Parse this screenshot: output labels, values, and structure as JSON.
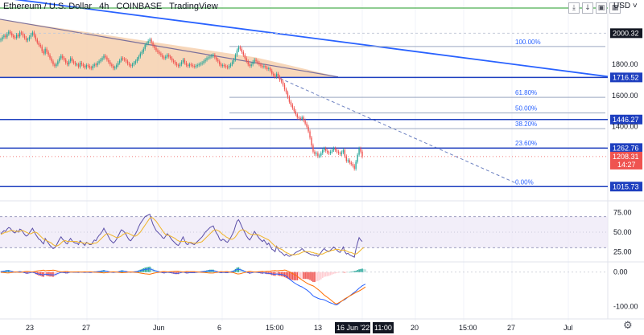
{
  "header": {
    "symbol": "Ethereum / U.S. Dollar",
    "interval": "4h",
    "exchange": "COINBASE",
    "source": "TradingView"
  },
  "toolbar": {
    "currency": "USD",
    "buttons": [
      "download-icon",
      "arrow-down-icon",
      "lock-icon",
      "settings-icon"
    ]
  },
  "colors": {
    "up": "#26a69a",
    "down": "#ef5350",
    "horizontal_line": "#1e3fbf",
    "trend_line": "#2962ff",
    "wedge_fill": "#f6d0ae",
    "fib_line": "#9aa7c0",
    "rsi_line": "#5b4fa8",
    "rsi_ma": "#f0b429",
    "macd_line": "#2962ff",
    "signal_line": "#ff6d00"
  },
  "chart_data": [
    {
      "type": "line",
      "title": "Ethereum / U.S. Dollar 4h COINBASE",
      "ylim": [
        950,
        2100
      ],
      "price_levels": [
        1015.73,
        1262.76,
        1446.27,
        1716.52,
        2000.32
      ],
      "current_price": "1208.31",
      "countdown": "14:27",
      "y_ticks": [
        "2000.32",
        "1800.00",
        "1716.52",
        "1600.00",
        "1446.27",
        "1400.00",
        "1262.76",
        "1208.31",
        "1015.73"
      ],
      "fibonacci": [
        {
          "label": "100.00%",
          "value": 1915
        },
        {
          "label": "61.80%",
          "value": 1589
        },
        {
          "label": "50.00%",
          "value": 1488
        },
        {
          "label": "38.20%",
          "value": 1388
        },
        {
          "label": "23.60%",
          "value": 1264
        },
        {
          "label": "0.00%",
          "value": 1015.73
        }
      ],
      "x_ticks": [
        "23",
        "27",
        "Jun",
        "6",
        "15:00",
        "13",
        "16 Jun '22",
        "11:00",
        "20",
        "15:00",
        "27",
        "Jul"
      ],
      "close_series": [
        1960,
        1975,
        1985,
        1975,
        1995,
        2010,
        2000,
        1985,
        1975,
        1970,
        1990,
        1980,
        2005,
        2000,
        1985,
        1970,
        1955,
        1960,
        1975,
        1990,
        2005,
        1985,
        1960,
        1940,
        1925,
        1915,
        1885,
        1870,
        1900,
        1880,
        1860,
        1840,
        1820,
        1800,
        1790,
        1800,
        1820,
        1840,
        1855,
        1840,
        1830,
        1810,
        1800,
        1820,
        1840,
        1820,
        1810,
        1800,
        1800,
        1785,
        1810,
        1800,
        1790,
        1780,
        1795,
        1790,
        1780,
        1775,
        1790,
        1800,
        1795,
        1810,
        1820,
        1830,
        1840,
        1855,
        1845,
        1830,
        1815,
        1800,
        1790,
        1775,
        1780,
        1795,
        1810,
        1825,
        1840,
        1835,
        1830,
        1820,
        1805,
        1795,
        1790,
        1800,
        1810,
        1820,
        1835,
        1850,
        1870,
        1880,
        1900,
        1925,
        1935,
        1950,
        1960,
        1940,
        1920,
        1905,
        1890,
        1880,
        1870,
        1860,
        1845,
        1840,
        1850,
        1860,
        1850,
        1840,
        1825,
        1815,
        1805,
        1795,
        1790,
        1800,
        1815,
        1830,
        1810,
        1795,
        1790,
        1800,
        1795,
        1790,
        1785,
        1790,
        1795,
        1800,
        1805,
        1810,
        1820,
        1830,
        1840,
        1845,
        1850,
        1855,
        1860,
        1845,
        1830,
        1820,
        1800,
        1790,
        1795,
        1790,
        1785,
        1780,
        1790,
        1800,
        1815,
        1830,
        1860,
        1890,
        1910,
        1900,
        1880,
        1860,
        1840,
        1820,
        1800,
        1790,
        1800,
        1815,
        1830,
        1820,
        1810,
        1800,
        1790,
        1785,
        1790,
        1780,
        1770,
        1775,
        1760,
        1740,
        1730,
        1720,
        1740,
        1720,
        1700,
        1690,
        1670,
        1640,
        1620,
        1590,
        1560,
        1540,
        1520,
        1500,
        1480,
        1460,
        1455,
        1450,
        1460,
        1440,
        1420,
        1400,
        1370,
        1330,
        1280,
        1240,
        1225,
        1230,
        1210,
        1215,
        1230,
        1250,
        1260,
        1245,
        1235,
        1230,
        1240,
        1250,
        1260,
        1250,
        1240,
        1230,
        1225,
        1235,
        1250,
        1210,
        1180,
        1185,
        1170,
        1160,
        1150,
        1130,
        1175,
        1220,
        1260,
        1240,
        1208.31
      ]
    },
    {
      "type": "line",
      "title": "RSI",
      "ylim": [
        15,
        85
      ],
      "y_ticks": [
        "75.00",
        "50.00",
        "25.00"
      ],
      "band": [
        30,
        70
      ],
      "rsi": [
        48,
        50,
        52,
        51,
        54,
        56,
        55,
        52,
        50,
        49,
        52,
        50,
        54,
        53,
        50,
        47,
        45,
        46,
        49,
        52,
        55,
        51,
        47,
        44,
        41,
        40,
        37,
        35,
        42,
        39,
        36,
        33,
        31,
        29,
        30,
        33,
        37,
        41,
        44,
        41,
        39,
        36,
        35,
        39,
        42,
        39,
        37,
        36,
        36,
        34,
        39,
        37,
        35,
        33,
        37,
        36,
        34,
        34,
        37,
        40,
        39,
        43,
        46,
        48,
        51,
        55,
        51,
        48,
        44,
        40,
        38,
        36,
        38,
        41,
        45,
        49,
        53,
        52,
        50,
        47,
        43,
        40,
        39,
        42,
        45,
        48,
        52,
        57,
        61,
        64,
        67,
        70,
        71,
        72,
        73,
        66,
        60,
        56,
        52,
        50,
        48,
        46,
        43,
        42,
        45,
        48,
        46,
        43,
        40,
        38,
        36,
        34,
        33,
        36,
        40,
        44,
        39,
        35,
        34,
        37,
        36,
        35,
        34,
        36,
        38,
        40,
        42,
        44,
        47,
        50,
        52,
        54,
        56,
        57,
        58,
        53,
        49,
        46,
        41,
        39,
        41,
        40,
        38,
        37,
        40,
        43,
        47,
        51,
        58,
        64,
        66,
        62,
        57,
        53,
        49,
        45,
        42,
        40,
        43,
        47,
        51,
        48,
        45,
        42,
        40,
        38,
        40,
        37,
        34,
        36,
        32,
        28,
        27,
        25,
        32,
        28,
        25,
        24,
        22,
        20,
        22,
        20,
        19,
        20,
        21,
        22,
        24,
        25,
        26,
        27,
        29,
        27,
        25,
        24,
        23,
        22,
        21,
        21,
        20,
        21,
        19,
        21,
        24,
        27,
        29,
        27,
        26,
        25,
        27,
        29,
        31,
        29,
        27,
        25,
        24,
        27,
        31,
        25,
        22,
        23,
        21,
        20,
        19,
        18,
        28,
        36,
        43,
        40,
        38
      ],
      "rsi_ma": [
        47,
        48,
        49,
        50,
        50,
        51,
        52,
        52,
        52,
        51,
        51,
        51,
        51,
        52,
        52,
        51,
        50,
        49,
        48,
        48,
        49,
        50,
        50,
        49,
        47,
        45,
        43,
        41,
        40,
        39,
        38,
        37,
        36,
        34,
        33,
        32,
        33,
        34,
        36,
        38,
        39,
        39,
        38,
        38,
        38,
        38,
        38,
        38,
        38,
        37,
        37,
        37,
        36,
        36,
        36,
        36,
        35,
        35,
        35,
        36,
        36,
        37,
        39,
        41,
        43,
        45,
        47,
        48,
        48,
        47,
        46,
        45,
        44,
        43,
        43,
        44,
        45,
        47,
        48,
        49,
        49,
        48,
        47,
        46,
        45,
        45,
        46,
        48,
        50,
        53,
        56,
        59,
        62,
        65,
        68,
        69,
        68,
        66,
        64,
        61,
        58,
        55,
        52,
        49,
        47,
        46,
        46,
        45,
        44,
        43,
        42,
        40,
        39,
        38,
        38,
        38,
        38,
        38,
        37,
        37,
        37,
        36,
        36,
        36,
        36,
        37,
        37,
        38,
        40,
        42,
        44,
        46,
        48,
        50,
        52,
        53,
        53,
        52,
        51,
        49,
        47,
        46,
        44,
        43,
        42,
        41,
        41,
        42,
        44,
        47,
        50,
        52,
        53,
        53,
        52,
        51,
        49,
        48,
        47,
        47,
        47,
        47,
        47,
        46,
        45,
        44,
        43,
        42,
        41,
        40,
        38,
        36,
        34,
        32,
        31,
        30,
        29,
        28,
        27,
        25,
        24,
        23,
        22,
        21,
        21,
        21,
        21,
        22,
        22,
        23,
        24,
        25,
        25,
        25,
        25,
        25,
        24,
        24,
        23,
        23,
        22,
        22,
        22,
        22,
        23,
        24,
        25,
        26,
        26,
        27,
        27,
        28,
        28,
        28,
        27,
        27,
        27,
        27,
        26,
        25,
        24,
        24,
        23,
        22,
        22,
        23,
        25,
        27,
        29,
        30
      ]
    },
    {
      "type": "bar",
      "title": "MACD",
      "ylim": [
        -125,
        25
      ],
      "y_ticks": [
        "0.00",
        "-100.00"
      ],
      "histogram": [
        2,
        3,
        4,
        5,
        6,
        6,
        5,
        3,
        1,
        -1,
        0,
        1,
        2,
        1,
        -1,
        -3,
        -5,
        -5,
        -4,
        -2,
        -1,
        -3,
        -6,
        -8,
        -10,
        -11,
        -13,
        -14,
        -10,
        -11,
        -12,
        -13,
        -13,
        -14,
        -13,
        -10,
        -7,
        -4,
        -2,
        -2,
        -3,
        -4,
        -4,
        -2,
        0,
        0,
        -1,
        -1,
        -1,
        -2,
        0,
        0,
        -1,
        -2,
        -1,
        -1,
        -2,
        -2,
        0,
        1,
        1,
        2,
        3,
        4,
        5,
        6,
        5,
        4,
        2,
        0,
        -1,
        -2,
        -1,
        0,
        1,
        3,
        5,
        5,
        4,
        3,
        1,
        0,
        -1,
        0,
        1,
        2,
        3,
        5,
        7,
        9,
        11,
        13,
        14,
        15,
        16,
        13,
        10,
        7,
        5,
        3,
        1,
        -1,
        -3,
        -4,
        -3,
        -1,
        -2,
        -3,
        -4,
        -5,
        -6,
        -6,
        -6,
        -4,
        -2,
        0,
        -2,
        -4,
        -4,
        -3,
        -3,
        -3,
        -3,
        -2,
        -1,
        0,
        1,
        2,
        3,
        4,
        5,
        6,
        7,
        7,
        7,
        5,
        3,
        1,
        -2,
        -3,
        -2,
        -2,
        -3,
        -3,
        -1,
        1,
        3,
        5,
        9,
        13,
        14,
        12,
        9,
        6,
        3,
        0,
        -3,
        -5,
        -4,
        -2,
        0,
        -1,
        -2,
        -3,
        -4,
        -5,
        -4,
        -5,
        -6,
        -6,
        -7,
        -9,
        -10,
        -11,
        -9,
        -10,
        -11,
        -12,
        -13,
        -15,
        -17,
        -19,
        -21,
        -22,
        -23,
        -24,
        -24,
        -24,
        -23,
        -22,
        -20,
        -20,
        -20,
        -20,
        -21,
        -23,
        -26,
        -29,
        -29,
        -27,
        -26,
        -24,
        -21,
        -17,
        -14,
        -13,
        -12,
        -11,
        -9,
        -7,
        -5,
        -4,
        -3,
        -2,
        -1,
        0,
        -1,
        -2,
        -1,
        0,
        0,
        1,
        2,
        3,
        4,
        6,
        8,
        9,
        10,
        9,
        8
      ]
    }
  ]
}
